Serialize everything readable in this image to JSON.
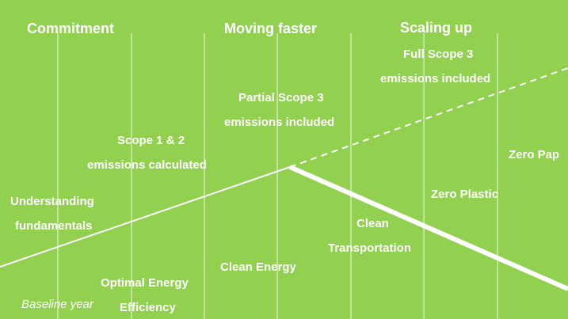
{
  "headers": {
    "commitment": "Commitment",
    "moving_faster": "Moving faster",
    "scaling_up": "Scaling up"
  },
  "labels": {
    "full_scope3_l1": "Full Scope 3",
    "full_scope3_l2": "emissions included",
    "partial_scope3_l1": "Partial Scope 3",
    "partial_scope3_l2": "emissions included",
    "scope12_l1": "Scope 1 & 2",
    "scope12_l2": "emissions calculated",
    "understanding_l1": "Understanding",
    "understanding_l2": "fundamentals",
    "zero_paper": "Zero Pap",
    "zero_plastic": "Zero Plastic",
    "clean_transport_l1": "Clean",
    "clean_transport_l2": "Transportation",
    "clean_energy": "Clean Energy",
    "optimal_energy_l1": "Optimal Energy",
    "optimal_energy_l2": "Efficiency",
    "baseline_year": "Baseline year"
  },
  "colors": {
    "background": "#92d050",
    "foreground": "#ffffff"
  }
}
